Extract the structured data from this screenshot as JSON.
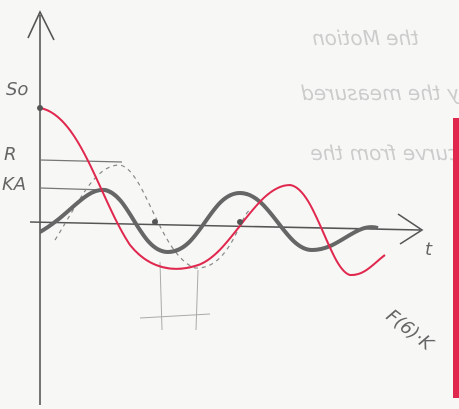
{
  "background_text": [
    "the Motion",
    "y the measured",
    "curve from the"
  ],
  "axis_labels": {
    "s0": "So",
    "r": "R",
    "ka": "KA",
    "t": "t"
  },
  "annotation": "F(6)·K"
}
